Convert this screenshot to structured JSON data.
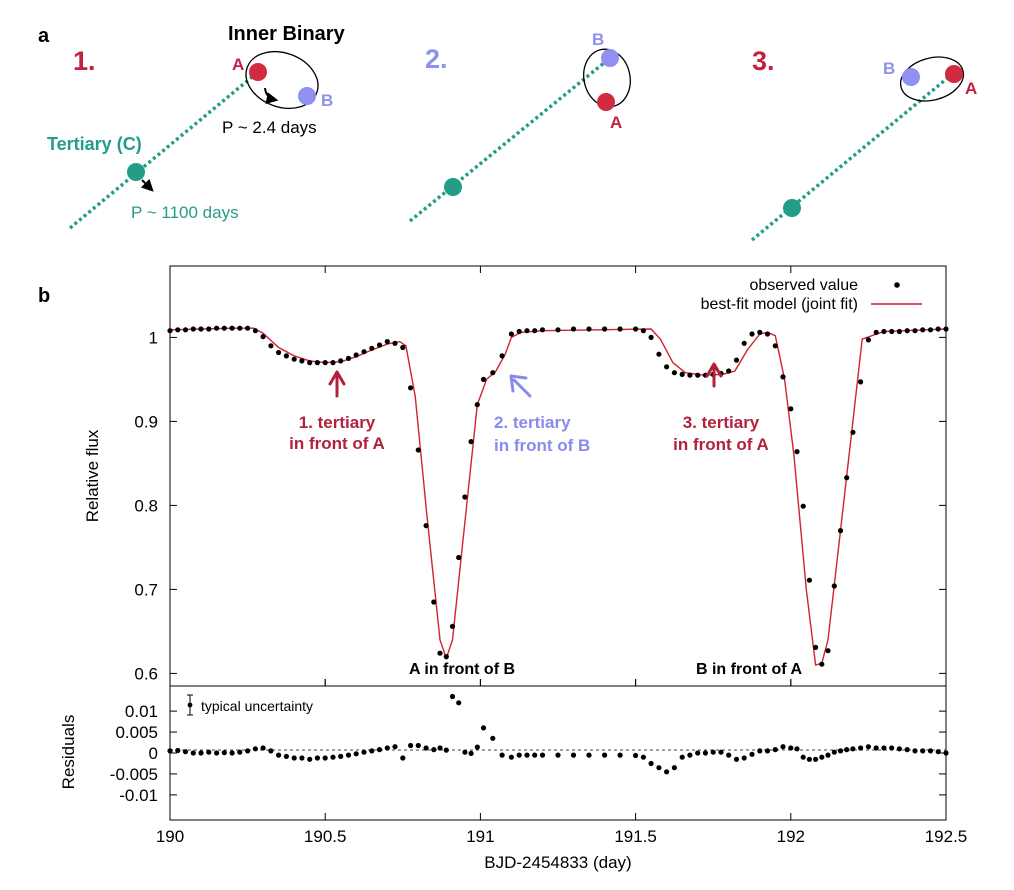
{
  "panel_a": {
    "panel_label": "a",
    "scenes": [
      {
        "number": "1.",
        "number_color": "#c0223f",
        "inner_title": "Inner Binary",
        "label_a": "A",
        "label_b": "B",
        "period_inner": "P ~ 2.4 days",
        "tertiary_label": "Tertiary (C)",
        "period_tertiary": "P ~ 1100 days"
      },
      {
        "number": "2.",
        "number_color": "#8f90f0",
        "label_a": "A",
        "label_b": "B"
      },
      {
        "number": "3.",
        "number_color": "#c0223f",
        "label_a": "A",
        "label_b": "B"
      }
    ]
  },
  "panel_b": {
    "panel_label": "b"
  },
  "colors": {
    "star_a": "#d22a41",
    "star_b": "#8f90f0",
    "tertiary": "#239d88",
    "model": "#d42030",
    "annot_red": "#b0223c",
    "annot_purple": "#8a8aee",
    "points": "#000000"
  },
  "chart_data": [
    {
      "type": "line",
      "title": "",
      "xlabel": "BJD-2454833 (day)",
      "ylabel": "Relative flux",
      "xlim": [
        190,
        192.5
      ],
      "ylim": [
        0.585,
        1.085
      ],
      "xticks": [
        190,
        190.5,
        191,
        191.5,
        192,
        192.5
      ],
      "xtick_labels": [
        "190",
        "190.5",
        "191",
        "191.5",
        "192",
        "192.5"
      ],
      "yticks": [
        0.6,
        0.7,
        0.8,
        0.9,
        1.0
      ],
      "ytick_labels": [
        "0.6",
        "0.7",
        "0.8",
        "0.9",
        "1"
      ],
      "legend": {
        "position": "top-right",
        "entries": [
          "observed value",
          "best-fit model (joint fit)"
        ]
      },
      "series": [
        {
          "name": "observed value",
          "style": "points",
          "x": [
            190,
            190.025,
            190.05,
            190.075,
            190.1,
            190.125,
            190.15,
            190.175,
            190.2,
            190.225,
            190.25,
            190.275,
            190.3,
            190.325,
            190.35,
            190.375,
            190.4,
            190.425,
            190.45,
            190.475,
            190.5,
            190.525,
            190.55,
            190.575,
            190.6,
            190.625,
            190.65,
            190.675,
            190.7,
            190.725,
            190.75,
            190.775,
            190.8,
            190.825,
            190.85,
            190.87,
            190.89,
            190.91,
            190.93,
            190.95,
            190.97,
            190.99,
            191.01,
            191.04,
            191.07,
            191.1,
            191.125,
            191.15,
            191.175,
            191.2,
            191.25,
            191.3,
            191.35,
            191.4,
            191.45,
            191.5,
            191.525,
            191.55,
            191.575,
            191.6,
            191.625,
            191.65,
            191.675,
            191.7,
            191.725,
            191.75,
            191.775,
            191.8,
            191.825,
            191.85,
            191.875,
            191.9,
            191.925,
            191.95,
            191.975,
            192,
            192.02,
            192.04,
            192.06,
            192.08,
            192.1,
            192.12,
            192.14,
            192.16,
            192.18,
            192.2,
            192.225,
            192.25,
            192.275,
            192.3,
            192.325,
            192.35,
            192.375,
            192.4,
            192.425,
            192.45,
            192.475,
            192.5
          ],
          "y": [
            1.008,
            1.009,
            1.009,
            1.01,
            1.01,
            1.01,
            1.011,
            1.011,
            1.011,
            1.011,
            1.011,
            1.008,
            1.001,
            0.99,
            0.982,
            0.978,
            0.974,
            0.972,
            0.97,
            0.97,
            0.97,
            0.97,
            0.972,
            0.975,
            0.979,
            0.983,
            0.987,
            0.991,
            0.995,
            0.993,
            0.988,
            0.94,
            0.866,
            0.776,
            0.685,
            0.624,
            0.62,
            0.656,
            0.738,
            0.81,
            0.876,
            0.92,
            0.95,
            0.958,
            0.978,
            1.004,
            1.007,
            1.008,
            1.008,
            1.009,
            1.009,
            1.01,
            1.01,
            1.01,
            1.01,
            1.01,
            1.008,
            1.0,
            0.98,
            0.965,
            0.958,
            0.956,
            0.955,
            0.955,
            0.955,
            0.956,
            0.957,
            0.96,
            0.973,
            0.993,
            1.004,
            1.006,
            1.004,
            0.99,
            0.953,
            0.915,
            0.864,
            0.799,
            0.711,
            0.631,
            0.611,
            0.627,
            0.704,
            0.77,
            0.833,
            0.887,
            0.947,
            0.997,
            1.006,
            1.007,
            1.007,
            1.007,
            1.008,
            1.008,
            1.009,
            1.009,
            1.01,
            1.01
          ]
        },
        {
          "name": "best-fit model (joint fit)",
          "style": "line",
          "x": [
            190,
            190.2,
            190.27,
            190.3,
            190.35,
            190.4,
            190.45,
            190.5,
            190.55,
            190.6,
            190.65,
            190.7,
            190.74,
            190.76,
            190.79,
            190.83,
            190.87,
            190.89,
            190.91,
            190.95,
            190.99,
            191.02,
            191.05,
            191.08,
            191.1,
            191.13,
            191.2,
            191.55,
            191.58,
            191.62,
            191.66,
            191.72,
            191.78,
            191.82,
            191.86,
            191.9,
            191.925,
            191.95,
            191.98,
            192.01,
            192.05,
            192.08,
            192.1,
            192.12,
            192.16,
            192.2,
            192.23,
            192.3,
            192.5
          ],
          "y": [
            1.009,
            1.011,
            1.011,
            1.005,
            0.988,
            0.978,
            0.972,
            0.97,
            0.971,
            0.977,
            0.985,
            0.992,
            0.995,
            0.99,
            0.93,
            0.78,
            0.64,
            0.618,
            0.64,
            0.78,
            0.92,
            0.95,
            0.96,
            0.98,
            1.0,
            1.006,
            1.008,
            1.01,
            0.998,
            0.97,
            0.958,
            0.955,
            0.956,
            0.96,
            0.985,
            1.004,
            1.006,
            1.002,
            0.95,
            0.86,
            0.7,
            0.61,
            0.612,
            0.64,
            0.77,
            0.9,
            0.998,
            1.007,
            1.01
          ]
        }
      ],
      "annotations": [
        {
          "lines": [
            "1. tertiary",
            "in front of A"
          ],
          "color": "annot_red",
          "arrow": "up"
        },
        {
          "lines": [
            "2. tertiary",
            "in front of B"
          ],
          "color": "annot_purple",
          "arrow": "up-left"
        },
        {
          "lines": [
            "3. tertiary",
            "in front of A"
          ],
          "color": "annot_red",
          "arrow": "up"
        },
        {
          "lines": [
            "A in front of B"
          ],
          "color": "points",
          "arrow": "none"
        },
        {
          "lines": [
            "B in front of A"
          ],
          "color": "points",
          "arrow": "none"
        }
      ]
    },
    {
      "type": "scatter",
      "title": "",
      "xlabel": "BJD-2454833 (day)",
      "ylabel": "Residuals",
      "xlim": [
        190,
        192.5
      ],
      "ylim": [
        -0.016,
        0.016
      ],
      "yticks": [
        0.01,
        0.005,
        0,
        -0.005,
        -0.01
      ],
      "ytick_labels": [
        "0.01",
        "0.005",
        "0",
        "-0.005",
        "-0.01"
      ],
      "zero_line": "dashed",
      "legend": {
        "position": "top-left",
        "entries": [
          "typical uncertainty"
        ]
      },
      "series": [
        {
          "name": "residuals",
          "x": [
            190,
            190.025,
            190.05,
            190.075,
            190.1,
            190.125,
            190.15,
            190.175,
            190.2,
            190.225,
            190.25,
            190.275,
            190.3,
            190.325,
            190.35,
            190.375,
            190.4,
            190.425,
            190.45,
            190.475,
            190.5,
            190.525,
            190.55,
            190.575,
            190.6,
            190.625,
            190.65,
            190.675,
            190.7,
            190.725,
            190.75,
            190.775,
            190.8,
            190.825,
            190.85,
            190.87,
            190.89,
            190.91,
            190.93,
            190.95,
            190.97,
            190.99,
            191.01,
            191.04,
            191.07,
            191.1,
            191.125,
            191.15,
            191.175,
            191.2,
            191.25,
            191.3,
            191.35,
            191.4,
            191.45,
            191.5,
            191.525,
            191.55,
            191.575,
            191.6,
            191.625,
            191.65,
            191.675,
            191.7,
            191.725,
            191.75,
            191.775,
            191.8,
            191.825,
            191.85,
            191.875,
            191.9,
            191.925,
            191.95,
            191.975,
            192,
            192.02,
            192.04,
            192.06,
            192.08,
            192.1,
            192.12,
            192.14,
            192.16,
            192.18,
            192.2,
            192.225,
            192.25,
            192.275,
            192.3,
            192.325,
            192.35,
            192.375,
            192.4,
            192.425,
            192.45,
            192.475,
            192.5
          ],
          "y": [
            0.0005,
            0.0006,
            0.0003,
            0.0,
            0.0,
            0.0002,
            0.0,
            0.0001,
            0.0,
            0.0002,
            0.0005,
            0.001,
            0.0012,
            0.0005,
            -0.0005,
            -0.0008,
            -0.0012,
            -0.0012,
            -0.0015,
            -0.0012,
            -0.0012,
            -0.001,
            -0.0008,
            -0.0005,
            -0.0002,
            0.0002,
            0.0005,
            0.0008,
            0.0012,
            0.0015,
            -0.0012,
            0.0018,
            0.0018,
            0.0012,
            0.0008,
            0.0012,
            0.0007,
            0.0135,
            0.012,
            0.0002,
            -0.0001,
            0.0014,
            0.006,
            0.0035,
            -0.0005,
            -0.001,
            -0.0005,
            -0.0005,
            -0.0005,
            -0.0005,
            -0.0005,
            -0.0005,
            -0.0005,
            -0.0005,
            -0.0005,
            -0.0006,
            -0.001,
            -0.0025,
            -0.0035,
            -0.0045,
            -0.0035,
            -0.001,
            -0.0005,
            0.0,
            0.0,
            0.0002,
            0.0002,
            -0.0005,
            -0.0015,
            -0.0012,
            -0.0003,
            0.0005,
            0.0005,
            0.0008,
            0.0015,
            0.0012,
            0.001,
            -0.001,
            -0.0015,
            -0.0015,
            -0.001,
            -0.0005,
            0.0002,
            0.0005,
            0.0008,
            0.001,
            0.0012,
            0.0015,
            0.0012,
            0.0012,
            0.0012,
            0.001,
            0.0008,
            0.0005,
            0.0005,
            0.0005,
            0.0003,
            0.0
          ]
        }
      ]
    }
  ]
}
